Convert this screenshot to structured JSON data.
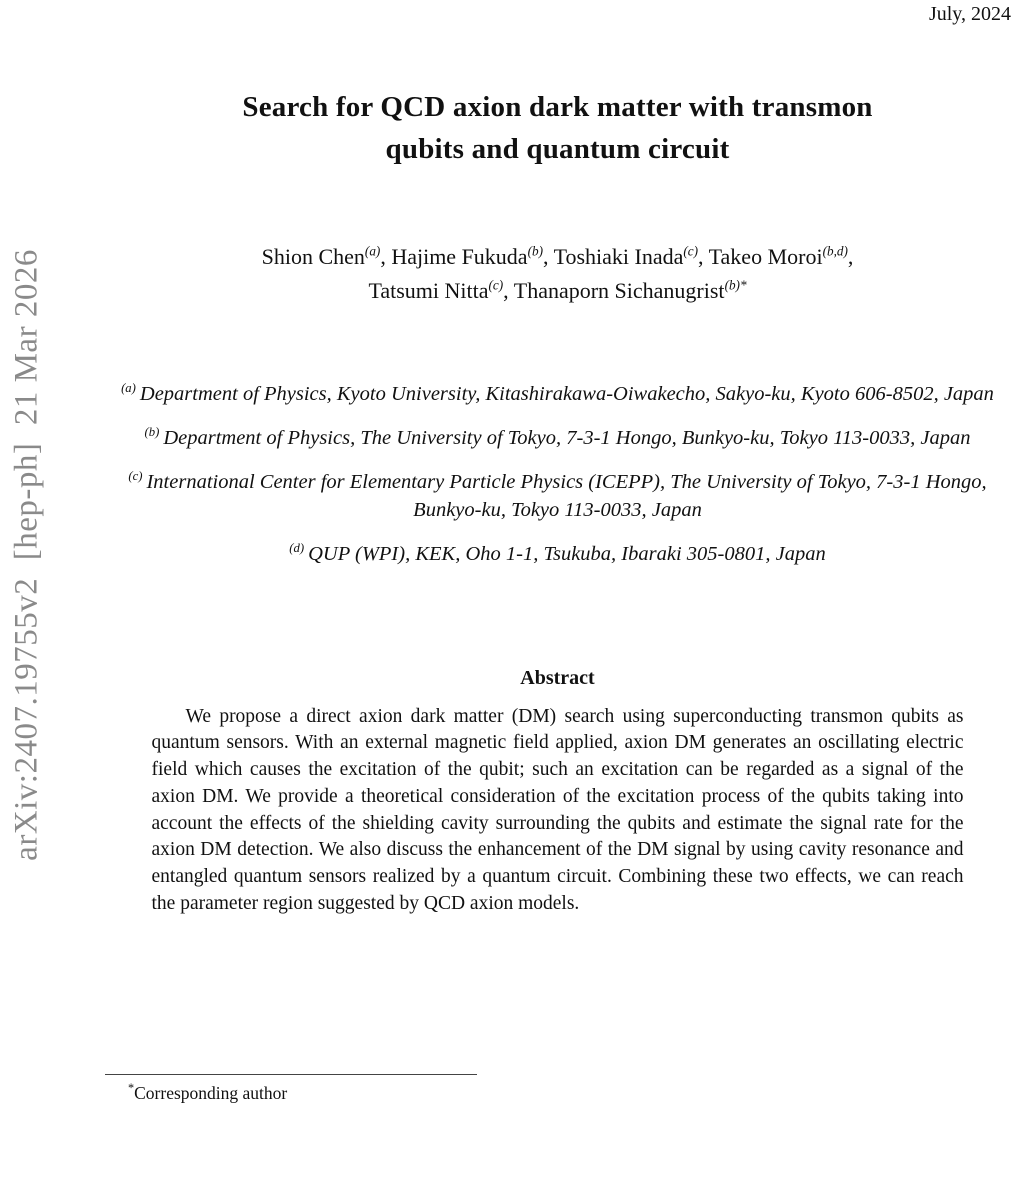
{
  "header": {
    "date": "July, 2024"
  },
  "watermark": {
    "text": "arXiv:2407.19755v2  [hep-ph]  21 Mar 2026"
  },
  "title": {
    "line1": "Search for QCD axion dark matter with transmon",
    "line2": "qubits and quantum circuit"
  },
  "authors": {
    "line1": [
      {
        "name": "Shion Chen",
        "sup": "(a)",
        "sep": ", "
      },
      {
        "name": "Hajime Fukuda",
        "sup": "(b)",
        "sep": ", "
      },
      {
        "name": "Toshiaki Inada",
        "sup": "(c)",
        "sep": ", "
      },
      {
        "name": "Takeo Moroi",
        "sup": "(b,d)",
        "sep": ","
      }
    ],
    "line2": [
      {
        "name": "Tatsumi Nitta",
        "sup": "(c)",
        "sep": ", "
      },
      {
        "name": "Thanaporn Sichanugrist",
        "sup": "(b)*",
        "sep": ""
      }
    ]
  },
  "affiliations": [
    {
      "label": "(a)",
      "text": "Department of Physics, Kyoto University, Kitashirakawa-Oiwakecho, Sakyo-ku, Kyoto 606-8502, Japan"
    },
    {
      "label": "(b)",
      "text": "Department of Physics, The University of Tokyo, 7-3-1 Hongo, Bunkyo-ku, Tokyo 113-0033, Japan"
    },
    {
      "label": "(c)",
      "text": "International Center for Elementary Particle Physics (ICEPP), The University of Tokyo, 7-3-1 Hongo, Bunkyo-ku, Tokyo 113-0033, Japan"
    },
    {
      "label": "(d)",
      "text": "QUP (WPI), KEK, Oho 1-1, Tsukuba, Ibaraki 305-0801, Japan"
    }
  ],
  "abstract": {
    "heading": "Abstract",
    "body": "We propose a direct axion dark matter (DM) search using superconducting transmon qubits as quantum sensors. With an external magnetic field applied, axion DM generates an oscillating electric field which causes the excitation of the qubit; such an excitation can be regarded as a signal of the axion DM. We provide a theoretical consideration of the excitation process of the qubits taking into account the effects of the shielding cavity surrounding the qubits and estimate the signal rate for the axion DM detection. We also discuss the enhancement of the DM signal by using cavity resonance and entangled quantum sensors realized by a quantum circuit. Combining these two effects, we can reach the parameter region suggested by QCD axion models."
  },
  "footnote": {
    "marker": "*",
    "text": "Corresponding author"
  },
  "colors": {
    "background": "#ffffff",
    "text": "#111111",
    "watermark_gray": "#8a8a8a"
  }
}
